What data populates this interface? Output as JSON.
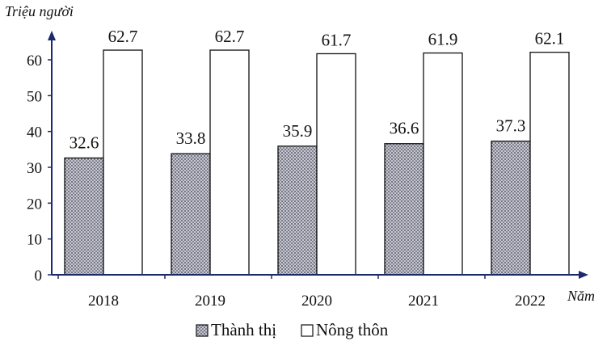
{
  "chart_data": {
    "type": "bar",
    "ylabel": "Triệu người",
    "xlabel": "Năm",
    "categories": [
      "2018",
      "2019",
      "2020",
      "2021",
      "2022"
    ],
    "series": [
      {
        "name": "Thành thị",
        "values": [
          32.6,
          33.8,
          35.9,
          36.6,
          37.3
        ],
        "value_labels": [
          "32.6",
          "33.8",
          "35.9",
          "36.6",
          "37.3"
        ],
        "fill": "dotted-gray"
      },
      {
        "name": "Nông thôn",
        "values": [
          62.7,
          62.7,
          61.7,
          61.9,
          62.1
        ],
        "value_labels": [
          "62.7",
          "62.7",
          "61.7",
          "61.9",
          "62.1"
        ],
        "fill": "#ffffff"
      }
    ],
    "yticks": [
      "0",
      "10",
      "20",
      "30",
      "40",
      "50",
      "60"
    ],
    "ylim": [
      0,
      70
    ],
    "grid": false,
    "legend_position": "bottom-center"
  }
}
